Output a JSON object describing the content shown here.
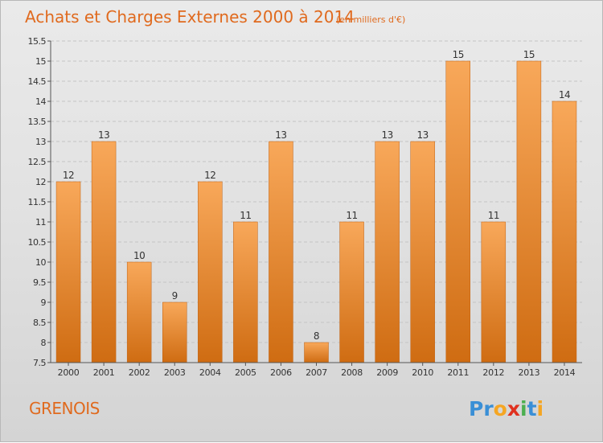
{
  "chart_data": {
    "type": "bar",
    "title": "Achats et Charges Externes 2000 à 2014",
    "subtitle": "(en milliers d'€)",
    "categories": [
      "2000",
      "2001",
      "2002",
      "2003",
      "2004",
      "2005",
      "2006",
      "2007",
      "2008",
      "2009",
      "2010",
      "2011",
      "2012",
      "2013",
      "2014"
    ],
    "values": [
      12,
      13,
      10,
      9,
      12,
      11,
      13,
      8,
      11,
      13,
      13,
      15,
      11,
      15,
      14
    ],
    "data_labels": [
      "12",
      "13",
      "10",
      "9",
      "12",
      "11",
      "13",
      "8",
      "11",
      "13",
      "13",
      "15",
      "11",
      "15",
      "14"
    ],
    "y_ticks": [
      "7.5",
      "8",
      "8.5",
      "9",
      "9.5",
      "10",
      "10.5",
      "11",
      "11.5",
      "12",
      "12.5",
      "13",
      "13.5",
      "14",
      "14.5",
      "15",
      "15.5"
    ],
    "ylim": [
      7.5,
      15.5
    ],
    "grid": true,
    "xlabel": "",
    "ylabel": "",
    "bar_color": "#e8872e"
  },
  "location_label": "GRENOIS",
  "logo": {
    "letters": [
      {
        "ch": "P",
        "color": "#3a8fd6"
      },
      {
        "ch": "r",
        "color": "#3a8fd6"
      },
      {
        "ch": "o",
        "color": "#f5a623"
      },
      {
        "ch": "x",
        "color": "#e0311f"
      },
      {
        "ch": "i",
        "color": "#4caf50"
      },
      {
        "ch": "t",
        "color": "#3a8fd6"
      },
      {
        "ch": "i",
        "color": "#f5a623"
      }
    ]
  }
}
